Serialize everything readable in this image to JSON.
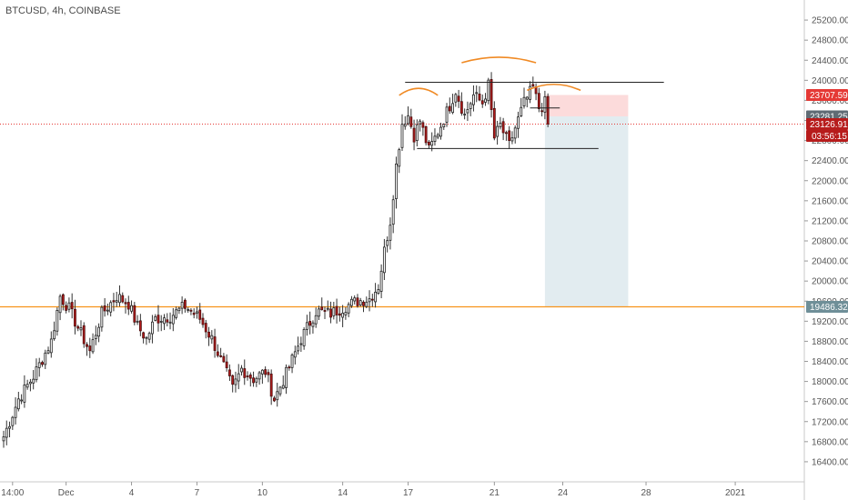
{
  "header": {
    "symbol_line": "BTCUSD, 4h, COINBASE"
  },
  "colors": {
    "up_fill": "#ffffff",
    "up_border": "#222222",
    "down_fill": "#b71c1c",
    "down_border": "#4a0d0d",
    "support_line": "#f7931a",
    "annotation": "#f08a24",
    "neckline": "#222222",
    "stop_zone": "#fbd5d5",
    "target_zone": "#dde9ed",
    "tag_red": "#e53935",
    "tag_dark_red": "#b71c1c",
    "tag_support": "#6f8f98",
    "tag_entry": "#5f6b74",
    "price_dotted": "#e53935"
  },
  "chart_data": {
    "type": "candlestick",
    "symbol": "BTCUSD",
    "interval": "4h",
    "exchange": "COINBASE",
    "y_range": [
      16000,
      25600
    ],
    "y_ticks": [
      16400,
      16800,
      17200,
      17600,
      18000,
      18400,
      18800,
      19200,
      19600,
      20000,
      20400,
      20800,
      21200,
      21600,
      22000,
      22400,
      22800,
      23200,
      23600,
      24000,
      24400,
      24800,
      25200
    ],
    "y_tick_labels": [
      "16400.00",
      "16800.00",
      "17200.00",
      "17600.00",
      "18000.00",
      "18400.00",
      "18800.00",
      "19200.00",
      "19600.00",
      "20000.00",
      "20400.00",
      "20800.00",
      "21200.00",
      "21600.00",
      "22000.00",
      "22400.00",
      "22800.00",
      "23200.00",
      "23600.00",
      "24000.00",
      "24400.00",
      "24800.00",
      "25200.00"
    ],
    "x_labels": [
      "14:00",
      "Dec",
      "4",
      "7",
      "10",
      "14",
      "17",
      "21",
      "24",
      "28",
      "2021"
    ],
    "x_label_bars": [
      3,
      21,
      43,
      65,
      87,
      114,
      136,
      165,
      188,
      216,
      246
    ],
    "total_bar_slots": 268,
    "candle_keyframes": [
      [
        0,
        16900
      ],
      [
        5,
        17650
      ],
      [
        10,
        18100
      ],
      [
        16,
        18800
      ],
      [
        19,
        19700
      ],
      [
        22,
        19450
      ],
      [
        26,
        18950
      ],
      [
        29,
        18600
      ],
      [
        33,
        19350
      ],
      [
        38,
        19700
      ],
      [
        42,
        19550
      ],
      [
        45,
        19100
      ],
      [
        48,
        18850
      ],
      [
        51,
        19250
      ],
      [
        56,
        19300
      ],
      [
        61,
        19500
      ],
      [
        66,
        19250
      ],
      [
        70,
        18850
      ],
      [
        74,
        18300
      ],
      [
        77,
        17850
      ],
      [
        80,
        18250
      ],
      [
        84,
        18050
      ],
      [
        88,
        18200
      ],
      [
        91,
        17650
      ],
      [
        95,
        18150
      ],
      [
        100,
        18850
      ],
      [
        105,
        19400
      ],
      [
        110,
        19350
      ],
      [
        115,
        19500
      ],
      [
        119,
        19600
      ],
      [
        123,
        19650
      ],
      [
        126,
        19900
      ],
      [
        128,
        20600
      ],
      [
        130,
        21200
      ],
      [
        132,
        22300
      ],
      [
        134,
        23150
      ],
      [
        136,
        23300
      ],
      [
        138,
        22900
      ],
      [
        140,
        23200
      ],
      [
        143,
        22600
      ],
      [
        147,
        23100
      ],
      [
        150,
        23500
      ],
      [
        152,
        23800
      ],
      [
        155,
        23300
      ],
      [
        158,
        23700
      ],
      [
        161,
        23550
      ],
      [
        163,
        23900
      ],
      [
        165,
        22850
      ],
      [
        167,
        23100
      ],
      [
        170,
        22700
      ],
      [
        172,
        23050
      ],
      [
        175,
        23550
      ],
      [
        178,
        23850
      ],
      [
        180,
        23450
      ],
      [
        182,
        23550
      ],
      [
        183,
        23130
      ]
    ],
    "candle_seed": 7,
    "support_level": 19486.32,
    "neckline_top": {
      "price": 23960,
      "from_bar": 135,
      "to_bar": 222
    },
    "neckline_low": {
      "price": 22640,
      "from_bar": 139,
      "to_bar": 200
    },
    "right_shoulder_marker": {
      "price": 23450,
      "from_bar": 177,
      "to_bar": 187
    },
    "position": {
      "type": "short",
      "from_bar": 182,
      "to_bar": 210,
      "stop": 23707.59,
      "entry": 23281.25,
      "target": 19486.32
    },
    "current_price": 23126.91,
    "countdown": "03:56:15",
    "price_tags": [
      {
        "label": "23707.59",
        "price": 23707.59,
        "color": "tag_red"
      },
      {
        "label": "23281.25",
        "price": 23281.25,
        "color": "tag_entry"
      },
      {
        "label": "23126.91",
        "price": 23126.91,
        "color": "tag_dark_red"
      },
      {
        "label": "19486.32",
        "price": 19486.32,
        "color": "tag_support"
      }
    ],
    "annotations": [
      "left-shoulder-arc",
      "head-arc",
      "right-shoulder-arc"
    ]
  }
}
